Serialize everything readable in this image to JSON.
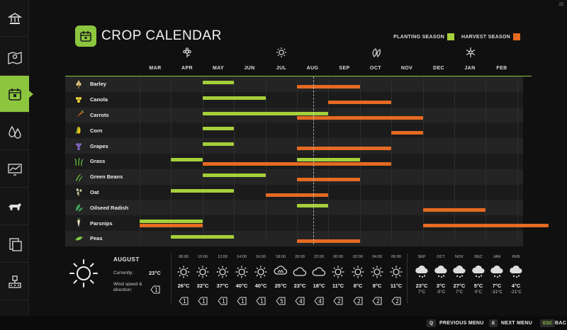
{
  "version": "25",
  "title": "CROP CALENDAR",
  "legend": {
    "planting": "PLANTING SEASON",
    "harvest": "HARVEST SEASON",
    "planting_color": "#a5d03a",
    "harvest_color": "#e56a22"
  },
  "accent": "#8cc63f",
  "sidebar": {
    "items": [
      {
        "icon": "bank-icon"
      },
      {
        "icon": "map-icon"
      },
      {
        "icon": "calendar-icon",
        "active": true
      },
      {
        "icon": "water-drops-icon"
      },
      {
        "icon": "chart-icon"
      },
      {
        "icon": "animals-icon"
      },
      {
        "icon": "contracts-icon"
      },
      {
        "icon": "production-icon"
      }
    ]
  },
  "seasons": [
    "spring-flower-icon",
    "summer-sun-icon",
    "autumn-leaves-icon",
    "winter-snowflake-icon"
  ],
  "months": [
    "MAR",
    "APR",
    "MAY",
    "JUN",
    "JUL",
    "AUG",
    "SEP",
    "OCT",
    "NOV",
    "DEC",
    "JAN",
    "FEB"
  ],
  "current_month": "AUG",
  "crops": [
    {
      "name": "Barley",
      "icon": "barley-icon",
      "plant": [
        [
          3,
          4
        ]
      ],
      "harvest": [
        [
          6,
          8
        ]
      ]
    },
    {
      "name": "Canola",
      "icon": "canola-icon",
      "plant": [
        [
          3,
          5
        ]
      ],
      "harvest": [
        [
          7,
          9
        ]
      ]
    },
    {
      "name": "Carrots",
      "icon": "carrot-icon",
      "plant": [
        [
          3,
          7
        ]
      ],
      "harvest": [
        [
          6,
          10
        ]
      ]
    },
    {
      "name": "Corn",
      "icon": "corn-icon",
      "plant": [
        [
          3,
          4
        ]
      ],
      "harvest": [
        [
          9,
          10
        ]
      ]
    },
    {
      "name": "Grapes",
      "icon": "grapes-icon",
      "plant": [
        [
          3,
          4
        ]
      ],
      "harvest": [
        [
          6,
          9
        ]
      ]
    },
    {
      "name": "Grass",
      "icon": "grass-icon",
      "plant": [
        [
          2,
          3
        ],
        [
          6,
          8
        ]
      ],
      "harvest": [
        [
          3,
          9
        ]
      ]
    },
    {
      "name": "Green Beans",
      "icon": "green-beans-icon",
      "plant": [
        [
          3,
          5
        ]
      ],
      "harvest": [
        [
          6,
          8
        ]
      ]
    },
    {
      "name": "Oat",
      "icon": "oat-icon",
      "plant": [
        [
          2,
          4
        ]
      ],
      "harvest": [
        [
          5,
          7
        ]
      ]
    },
    {
      "name": "Oilseed Radish",
      "icon": "radish-icon",
      "plant": [
        [
          6,
          7
        ]
      ],
      "harvest": [
        [
          10,
          12
        ]
      ]
    },
    {
      "name": "Parsnips",
      "icon": "parsnip-icon",
      "plant": [
        [
          1,
          3
        ]
      ],
      "harvest": [
        [
          1,
          3
        ],
        [
          10,
          14
        ]
      ]
    },
    {
      "name": "Peas",
      "icon": "peas-icon",
      "plant": [
        [
          2,
          4
        ]
      ],
      "harvest": [
        [
          6,
          8
        ]
      ]
    }
  ],
  "weather": {
    "month": "AUGUST",
    "currently_label": "Currently:",
    "currently_value": "23°C",
    "wind_label": "Wind speed &",
    "wind_label2": "direction:",
    "wind_value": "1",
    "hourly": [
      {
        "time": "08:00",
        "temp": "26°C",
        "icon": "sun-icon",
        "wind": "1"
      },
      {
        "time": "10:00",
        "temp": "32°C",
        "icon": "sun-icon",
        "wind": "1"
      },
      {
        "time": "12:00",
        "temp": "37°C",
        "icon": "sun-icon",
        "wind": "1"
      },
      {
        "time": "14:00",
        "temp": "40°C",
        "icon": "sun-icon",
        "wind": "1"
      },
      {
        "time": "16:00",
        "temp": "40°C",
        "icon": "sun-icon",
        "wind": "1"
      },
      {
        "time": "18:00",
        "temp": "25°C",
        "icon": "hail-cloud-icon",
        "wind": "5"
      },
      {
        "time": "20:00",
        "temp": "23°C",
        "icon": "cloud-icon",
        "wind": "4"
      },
      {
        "time": "22:00",
        "temp": "18°C",
        "icon": "cloud-icon",
        "wind": "4"
      },
      {
        "time": "00:00",
        "temp": "11°C",
        "icon": "sun-icon",
        "wind": "2"
      },
      {
        "time": "02:00",
        "temp": "8°C",
        "icon": "sun-icon",
        "wind": "2"
      },
      {
        "time": "04:00",
        "temp": "8°C",
        "icon": "sun-icon",
        "wind": "2"
      },
      {
        "time": "06:00",
        "temp": "11°C",
        "icon": "sun-icon",
        "wind": "2"
      }
    ],
    "monthly": [
      {
        "month": "SEP",
        "max": "23°C",
        "min": "7°C",
        "icon": "rain-cloud-icon"
      },
      {
        "month": "OCT",
        "max": "3°C",
        "min": "-5°C",
        "icon": "rain-cloud-icon"
      },
      {
        "month": "NOV",
        "max": "27°C",
        "min": "7°C",
        "icon": "rain-cloud-icon"
      },
      {
        "month": "DEC",
        "max": "5°C",
        "min": "0°C",
        "icon": "rain-cloud-icon"
      },
      {
        "month": "JAN",
        "max": "7°C",
        "min": "-31°C",
        "icon": "rain-cloud-icon"
      },
      {
        "month": "FEB",
        "max": "4°C",
        "min": "-21°C",
        "icon": "rain-cloud-icon"
      }
    ]
  },
  "footer": [
    {
      "key": "Q",
      "label": "PREVIOUS MENU"
    },
    {
      "key": "E",
      "label": "NEXT MENU"
    },
    {
      "key": "ESC",
      "label": "BAC"
    }
  ]
}
